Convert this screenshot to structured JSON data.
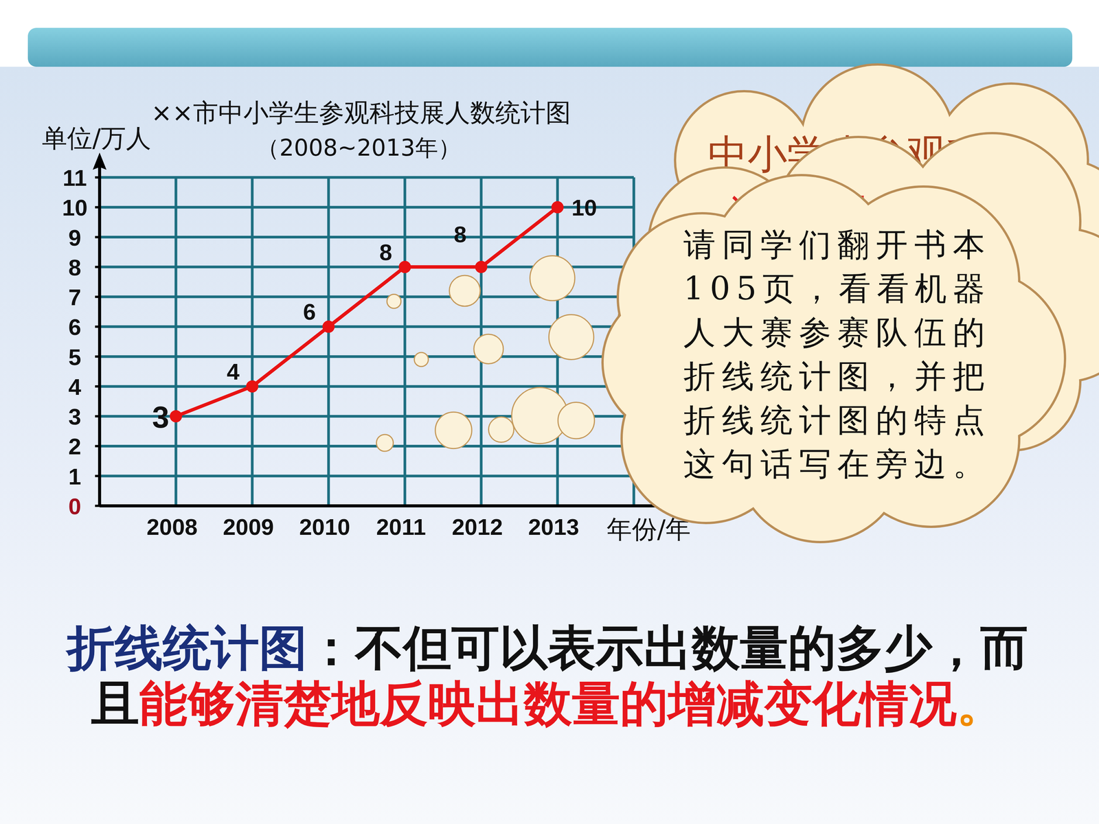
{
  "chart_data": {
    "type": "line",
    "title": "××市中小学生参观科技展人数统计图",
    "subtitle": "（2008~2013年）",
    "y_label": "单位/万人",
    "x_label": "年份/年",
    "categories": [
      "2008",
      "2009",
      "2010",
      "2011",
      "2012",
      "2013"
    ],
    "values": [
      3,
      4,
      6,
      8,
      8,
      10
    ],
    "color": "#e81212",
    "marker": "circle",
    "ylim": [
      0,
      11
    ],
    "yticks": [
      0,
      1,
      2,
      3,
      4,
      5,
      6,
      7,
      8,
      9,
      10,
      11
    ],
    "grid": true,
    "data_labels": true
  },
  "slide": {
    "cloud_back_text": "中小学生参观科",
    "cloud_middle_text": "讨论，大家那",
    "cloud_front_lines": [
      "请同学们翻开书本",
      "105页，看看机器",
      "人大赛参赛队伍的",
      "折线统计图，并把",
      "折线统计图的特点",
      "这句话写在旁边。"
    ],
    "conclusion": {
      "term": "折线统计图",
      "line1": "：不但可以表示出数量的多少，而",
      "line2_start": "且",
      "highlight": "能够清楚地反映出数量的增减变化情况",
      "end": "。"
    }
  }
}
